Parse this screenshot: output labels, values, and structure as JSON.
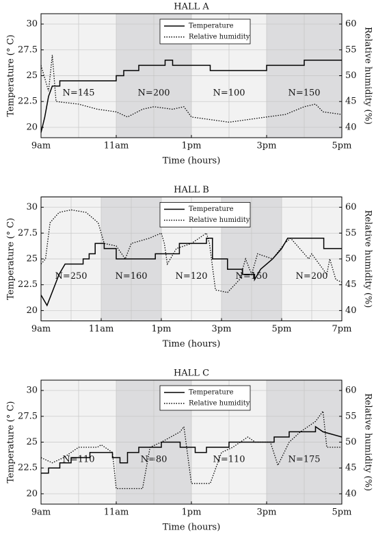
{
  "chart_data": [
    {
      "type": "line",
      "title": "HALL A",
      "x_label": "Time (hours)",
      "y_label": "Temperature (° C)",
      "y2_label": "Relative humidity (%)",
      "xlim": [
        9,
        17
      ],
      "xticks": [
        {
          "value": 9,
          "label": "9am"
        },
        {
          "value": 11,
          "label": "11am"
        },
        {
          "value": 13,
          "label": "1pm"
        },
        {
          "value": 15,
          "label": "3pm"
        },
        {
          "value": 17,
          "label": "5pm"
        }
      ],
      "ylim": [
        19,
        31
      ],
      "yticks": [
        20,
        22.5,
        25,
        27.5,
        30
      ],
      "y2lim": [
        38,
        62
      ],
      "y2ticks": [
        40,
        45,
        50,
        55,
        60
      ],
      "grid": true,
      "legend": "upper center",
      "bands": [
        {
          "start": 9,
          "end": 11,
          "label": "N=145",
          "shaded": false
        },
        {
          "start": 11,
          "end": 13,
          "label": "N=200",
          "shaded": true
        },
        {
          "start": 13,
          "end": 15,
          "label": "N=100",
          "shaded": false
        },
        {
          "start": 15,
          "end": 17,
          "label": "N=150",
          "shaded": true
        }
      ],
      "series": [
        {
          "name": "Temperature",
          "color": "#000000",
          "style": "solid",
          "axis": "y",
          "x": [
            9,
            9.1,
            9.2,
            9.3,
            9.4,
            9.5,
            9.5,
            11,
            11,
            11.2,
            11.2,
            11.6,
            11.6,
            12.3,
            12.3,
            12.5,
            12.5,
            13.5,
            13.5,
            15,
            15,
            16,
            16,
            17
          ],
          "values": [
            19.5,
            21,
            23,
            24,
            24,
            24,
            24.5,
            24.5,
            25,
            25,
            25.5,
            25.5,
            26,
            26,
            26.5,
            26.5,
            26,
            26,
            25.5,
            25.5,
            26,
            26,
            26.5,
            26.5
          ]
        },
        {
          "name": "Relative humidity",
          "color": "#000000",
          "style": "dotted",
          "axis": "y2",
          "x": [
            9,
            9.2,
            9.3,
            9.4,
            10,
            10.5,
            11,
            11.3,
            11.7,
            12,
            12.5,
            12.8,
            13,
            13.5,
            14,
            14.5,
            15,
            15.5,
            16,
            16.3,
            16.5,
            17
          ],
          "values": [
            52,
            47,
            54,
            45,
            44.5,
            43.5,
            43,
            42,
            43.5,
            44,
            43.5,
            44,
            42,
            41.5,
            41,
            41.5,
            42,
            42.5,
            44,
            44.5,
            43,
            42.5
          ]
        }
      ]
    },
    {
      "type": "line",
      "title": "HALL B",
      "x_label": "Time (hours)",
      "y_label": "Temperature (° C)",
      "y2_label": "Relative humidity (%)",
      "xlim": [
        9,
        19
      ],
      "xticks": [
        {
          "value": 9,
          "label": "9am"
        },
        {
          "value": 11,
          "label": "11am"
        },
        {
          "value": 13,
          "label": "1pm"
        },
        {
          "value": 15,
          "label": "3pm"
        },
        {
          "value": 17,
          "label": "5pm"
        },
        {
          "value": 19,
          "label": "7pm"
        }
      ],
      "ylim": [
        19,
        31
      ],
      "yticks": [
        20,
        22.5,
        25,
        27.5,
        30
      ],
      "y2lim": [
        38,
        62
      ],
      "y2ticks": [
        40,
        45,
        50,
        55,
        60
      ],
      "grid": true,
      "legend": "upper center",
      "bands": [
        {
          "start": 9,
          "end": 11,
          "label": "N=250",
          "shaded": false
        },
        {
          "start": 11,
          "end": 13,
          "label": "N=160",
          "shaded": true
        },
        {
          "start": 13,
          "end": 15,
          "label": "N=120",
          "shaded": false
        },
        {
          "start": 15,
          "end": 17,
          "label": "N=150",
          "shaded": true
        },
        {
          "start": 17,
          "end": 19,
          "label": "N=200",
          "shaded": false
        }
      ],
      "series": [
        {
          "name": "Temperature",
          "color": "#000000",
          "style": "solid",
          "axis": "y",
          "x": [
            9,
            9.2,
            9.4,
            9.6,
            9.8,
            10.4,
            10.4,
            10.6,
            10.6,
            10.8,
            10.8,
            11.1,
            11.1,
            11.5,
            11.5,
            12.8,
            12.8,
            13.6,
            13.6,
            14.5,
            14.5,
            14.7,
            14.7,
            15.2,
            15.2,
            15.7,
            15.7,
            16.1,
            16.1,
            16.3,
            16.7,
            17,
            17.2,
            18.4,
            18.4,
            19
          ],
          "values": [
            21.5,
            20.5,
            22,
            23.5,
            24.5,
            24.5,
            25,
            25,
            25.5,
            25.5,
            26.5,
            26.5,
            26,
            26,
            25,
            25,
            25.5,
            25.5,
            26.5,
            26.5,
            27,
            27,
            25,
            25,
            24,
            24,
            23.5,
            23.5,
            23,
            24,
            25,
            26,
            27,
            27,
            26,
            26
          ]
        },
        {
          "name": "Relative humidity",
          "color": "#000000",
          "style": "dotted",
          "axis": "y2",
          "x": [
            9,
            9.15,
            9.3,
            9.6,
            10,
            10.5,
            10.9,
            11.1,
            11.5,
            11.8,
            12,
            12.6,
            13,
            13.1,
            13.2,
            13.5,
            14,
            14.5,
            14.6,
            14.8,
            15.2,
            15.6,
            15.8,
            16,
            16.2,
            16.7,
            17.1,
            17.3,
            17.6,
            17.9,
            18,
            18.5,
            18.6,
            18.8,
            19
          ],
          "values": [
            49,
            50,
            57,
            59,
            59.5,
            59,
            57,
            53,
            52.5,
            50,
            53,
            54,
            55,
            53,
            49,
            52,
            53,
            55,
            53,
            44,
            43.5,
            46,
            50,
            47,
            51,
            50,
            53,
            54,
            52,
            50,
            51,
            47,
            50,
            46,
            45.5
          ]
        }
      ]
    },
    {
      "type": "line",
      "title": "HALL C",
      "x_label": "Time (hours)",
      "y_label": "Temperature (° C)",
      "y2_label": "Relative humidity (%)",
      "xlim": [
        9,
        17
      ],
      "xticks": [
        {
          "value": 9,
          "label": "9am"
        },
        {
          "value": 11,
          "label": "11am"
        },
        {
          "value": 13,
          "label": "1pm"
        },
        {
          "value": 15,
          "label": "3pm"
        },
        {
          "value": 17,
          "label": "5pm"
        }
      ],
      "ylim": [
        19,
        31
      ],
      "yticks": [
        20,
        22.5,
        25,
        27.5,
        30
      ],
      "y2lim": [
        38,
        62
      ],
      "y2ticks": [
        40,
        45,
        50,
        55,
        60
      ],
      "grid": true,
      "legend": "upper center",
      "bands": [
        {
          "start": 9,
          "end": 11,
          "label": "N=110",
          "shaded": false
        },
        {
          "start": 11,
          "end": 13,
          "label": "N=80",
          "shaded": true
        },
        {
          "start": 13,
          "end": 15,
          "label": "N=110",
          "shaded": false
        },
        {
          "start": 15,
          "end": 17,
          "label": "N=175",
          "shaded": true
        }
      ],
      "series": [
        {
          "name": "Temperature",
          "color": "#000000",
          "style": "solid",
          "axis": "y",
          "x": [
            9,
            9.2,
            9.2,
            9.5,
            9.5,
            9.8,
            9.8,
            10.3,
            10.3,
            10.9,
            10.9,
            11.1,
            11.1,
            11.3,
            11.3,
            11.6,
            11.6,
            12.2,
            12.2,
            12.7,
            12.7,
            13.1,
            13.1,
            13.4,
            13.4,
            14,
            14,
            15.2,
            15.2,
            15.6,
            15.6,
            16.3,
            16.3,
            16.5,
            17
          ],
          "values": [
            22,
            22,
            22.5,
            22.5,
            23,
            23,
            23.5,
            23.5,
            24,
            24,
            23.5,
            23.5,
            23,
            23,
            24,
            24,
            24.5,
            24.5,
            25,
            25,
            24.5,
            24.5,
            24,
            24,
            24.5,
            24.5,
            25,
            25,
            25.5,
            25.5,
            26,
            26,
            26.5,
            26,
            25.5
          ]
        },
        {
          "name": "Relative humidity",
          "color": "#000000",
          "style": "dotted",
          "axis": "y2",
          "x": [
            9,
            9.3,
            9.6,
            10,
            10.5,
            10.6,
            10.9,
            11,
            11.7,
            11.8,
            11.9,
            12.2,
            12.7,
            12.8,
            13,
            13.5,
            13.8,
            14.1,
            14.5,
            14.7,
            15.1,
            15.3,
            15.6,
            15.9,
            16.3,
            16.5,
            16.6,
            17
          ],
          "values": [
            47,
            46,
            47,
            49,
            49,
            49.5,
            48,
            41,
            41,
            45,
            49,
            50,
            52,
            53,
            42,
            42,
            48,
            49,
            51,
            50,
            50,
            45.5,
            50,
            52,
            54,
            56,
            49,
            49
          ]
        }
      ]
    }
  ]
}
